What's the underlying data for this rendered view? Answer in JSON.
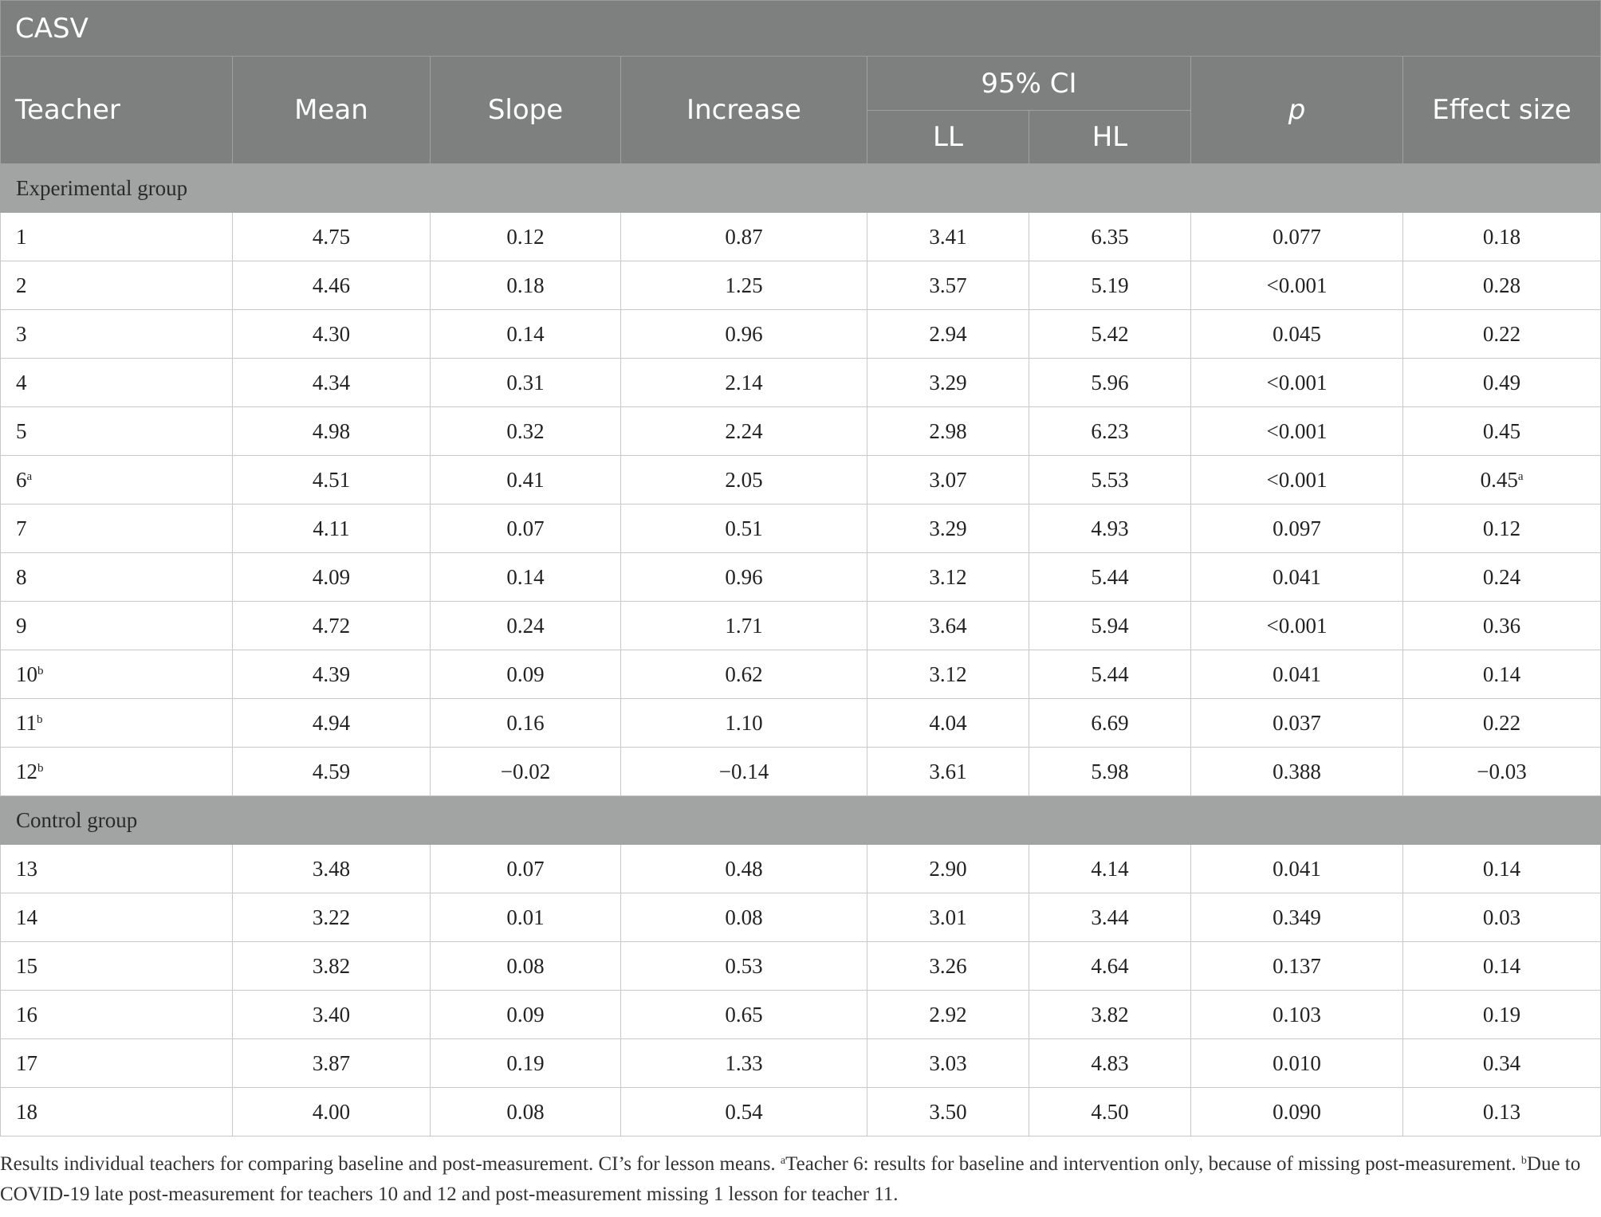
{
  "table_title": "CASV",
  "headers": {
    "teacher": "Teacher",
    "mean": "Mean",
    "slope": "Slope",
    "increase": "Increase",
    "ci": "95% CI",
    "ll": "LL",
    "hl": "HL",
    "p": "p",
    "effect_size": "Effect size"
  },
  "groups": {
    "experimental": "Experimental group",
    "control": "Control group"
  },
  "experimental_rows": [
    {
      "teacher": "1",
      "sup": "",
      "mean": "4.75",
      "slope": "0.12",
      "increase": "0.87",
      "ll": "3.41",
      "hl": "6.35",
      "p": "0.077",
      "es": "0.18",
      "es_sup": ""
    },
    {
      "teacher": "2",
      "sup": "",
      "mean": "4.46",
      "slope": "0.18",
      "increase": "1.25",
      "ll": "3.57",
      "hl": "5.19",
      "p": "<0.001",
      "es": "0.28",
      "es_sup": ""
    },
    {
      "teacher": "3",
      "sup": "",
      "mean": "4.30",
      "slope": "0.14",
      "increase": "0.96",
      "ll": "2.94",
      "hl": "5.42",
      "p": "0.045",
      "es": "0.22",
      "es_sup": ""
    },
    {
      "teacher": "4",
      "sup": "",
      "mean": "4.34",
      "slope": "0.31",
      "increase": "2.14",
      "ll": "3.29",
      "hl": "5.96",
      "p": "<0.001",
      "es": "0.49",
      "es_sup": ""
    },
    {
      "teacher": "5",
      "sup": "",
      "mean": "4.98",
      "slope": "0.32",
      "increase": "2.24",
      "ll": "2.98",
      "hl": "6.23",
      "p": "<0.001",
      "es": "0.45",
      "es_sup": ""
    },
    {
      "teacher": "6",
      "sup": "a",
      "mean": "4.51",
      "slope": "0.41",
      "increase": "2.05",
      "ll": "3.07",
      "hl": "5.53",
      "p": "<0.001",
      "es": "0.45",
      "es_sup": "a"
    },
    {
      "teacher": "7",
      "sup": "",
      "mean": "4.11",
      "slope": "0.07",
      "increase": "0.51",
      "ll": "3.29",
      "hl": "4.93",
      "p": "0.097",
      "es": "0.12",
      "es_sup": ""
    },
    {
      "teacher": "8",
      "sup": "",
      "mean": "4.09",
      "slope": "0.14",
      "increase": "0.96",
      "ll": "3.12",
      "hl": "5.44",
      "p": "0.041",
      "es": "0.24",
      "es_sup": ""
    },
    {
      "teacher": "9",
      "sup": "",
      "mean": "4.72",
      "slope": "0.24",
      "increase": "1.71",
      "ll": "3.64",
      "hl": "5.94",
      "p": "<0.001",
      "es": "0.36",
      "es_sup": ""
    },
    {
      "teacher": "10",
      "sup": "b",
      "mean": "4.39",
      "slope": "0.09",
      "increase": "0.62",
      "ll": "3.12",
      "hl": "5.44",
      "p": "0.041",
      "es": "0.14",
      "es_sup": ""
    },
    {
      "teacher": "11",
      "sup": "b",
      "mean": "4.94",
      "slope": "0.16",
      "increase": "1.10",
      "ll": "4.04",
      "hl": "6.69",
      "p": "0.037",
      "es": "0.22",
      "es_sup": ""
    },
    {
      "teacher": "12",
      "sup": "b",
      "mean": "4.59",
      "slope": "−0.02",
      "increase": "−0.14",
      "ll": "3.61",
      "hl": "5.98",
      "p": "0.388",
      "es": "−0.03",
      "es_sup": ""
    }
  ],
  "control_rows": [
    {
      "teacher": "13",
      "sup": "",
      "mean": "3.48",
      "slope": "0.07",
      "increase": "0.48",
      "ll": "2.90",
      "hl": "4.14",
      "p": "0.041",
      "es": "0.14",
      "es_sup": ""
    },
    {
      "teacher": "14",
      "sup": "",
      "mean": "3.22",
      "slope": "0.01",
      "increase": "0.08",
      "ll": "3.01",
      "hl": "3.44",
      "p": "0.349",
      "es": "0.03",
      "es_sup": ""
    },
    {
      "teacher": "15",
      "sup": "",
      "mean": "3.82",
      "slope": "0.08",
      "increase": "0.53",
      "ll": "3.26",
      "hl": "4.64",
      "p": "0.137",
      "es": "0.14",
      "es_sup": ""
    },
    {
      "teacher": "16",
      "sup": "",
      "mean": "3.40",
      "slope": "0.09",
      "increase": "0.65",
      "ll": "2.92",
      "hl": "3.82",
      "p": "0.103",
      "es": "0.19",
      "es_sup": ""
    },
    {
      "teacher": "17",
      "sup": "",
      "mean": "3.87",
      "slope": "0.19",
      "increase": "1.33",
      "ll": "3.03",
      "hl": "4.83",
      "p": "0.010",
      "es": "0.34",
      "es_sup": ""
    },
    {
      "teacher": "18",
      "sup": "",
      "mean": "4.00",
      "slope": "0.08",
      "increase": "0.54",
      "ll": "3.50",
      "hl": "4.50",
      "p": "0.090",
      "es": "0.13",
      "es_sup": ""
    }
  ],
  "footnote": {
    "text1": "Results individual teachers for comparing baseline and post-measurement. CI’s for lesson means. ",
    "sup_a": "a",
    "text2": "Teacher 6: results for baseline and intervention only, because of missing post-measurement. ",
    "sup_b": "b",
    "text3": "Due to COVID-19 late post-measurement for teachers 10 and 12 and post-measurement missing 1 lesson for teacher 11."
  }
}
